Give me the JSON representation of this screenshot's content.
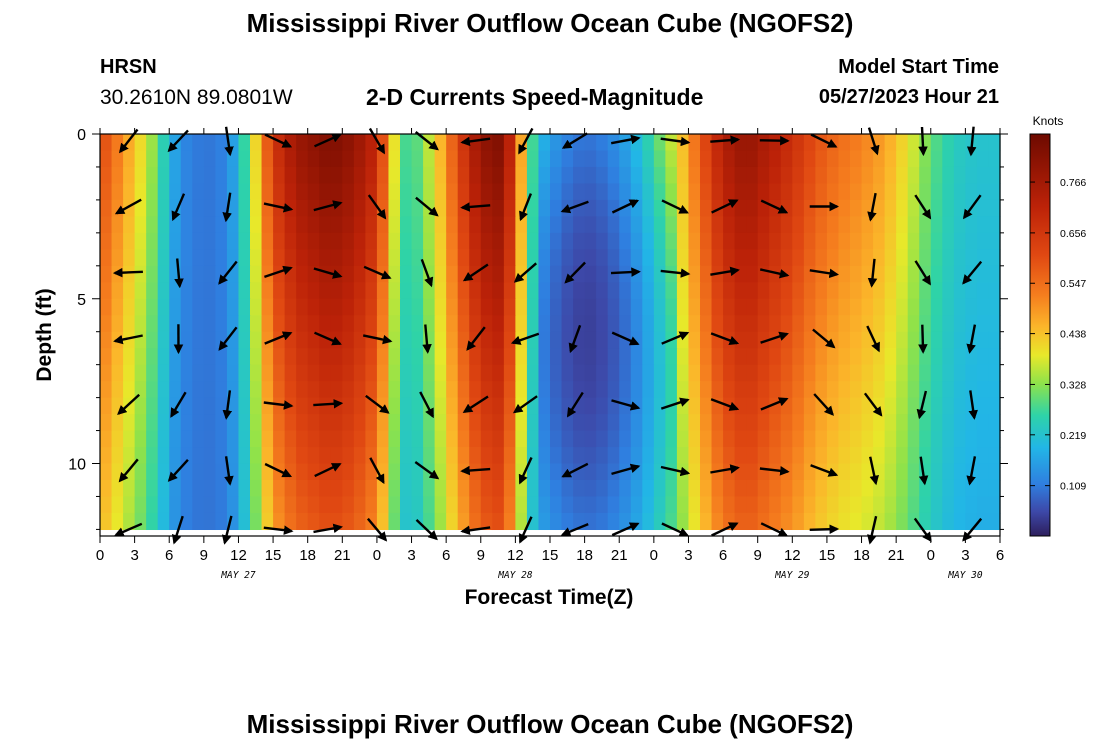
{
  "header": {
    "title": "Mississippi River Outflow Ocean Cube (NGOFS2)",
    "station": "HRSN",
    "coords": "30.2610N  89.0801W",
    "plot_title": "2-D Currents Speed-Magnitude",
    "model_label": "Model Start Time",
    "model_time": "05/27/2023 Hour 21"
  },
  "footer": {
    "title": "Mississippi River Outflow Ocean Cube (NGOFS2)"
  },
  "chart_data": {
    "type": "heatmap",
    "title": "2-D Currents Speed-Magnitude",
    "xlabel": "Forecast Time(Z)",
    "ylabel": "Depth (ft)",
    "units": "Knots",
    "xlim": [
      0,
      78
    ],
    "ylim": [
      12.2,
      0
    ],
    "x_tick_labels": [
      "0",
      "3",
      "6",
      "9",
      "12",
      "15",
      "18",
      "21",
      "0",
      "3",
      "6",
      "9",
      "12",
      "15",
      "18",
      "21",
      "0",
      "3",
      "6",
      "9",
      "12",
      "15",
      "18",
      "21",
      "0",
      "3",
      "6"
    ],
    "y_tick_labels": [
      "0",
      "5",
      "10"
    ],
    "date_labels": [
      {
        "text": "MAY 27",
        "hour": 12
      },
      {
        "text": "MAY 28",
        "hour": 36
      },
      {
        "text": "MAY 29",
        "hour": 60
      },
      {
        "text": "MAY 30",
        "hour": 75
      }
    ],
    "colorbar": {
      "min": 0.0,
      "max": 0.87,
      "ticks": [
        "0.766",
        "0.656",
        "0.547",
        "0.438",
        "0.328",
        "0.219",
        "0.109"
      ],
      "tick_values": [
        0.766,
        0.656,
        0.547,
        0.438,
        0.328,
        0.219,
        0.109
      ]
    },
    "depths_ft": [
      0.25,
      0.75,
      1.25,
      1.75,
      2.25,
      2.75,
      3.25,
      3.75,
      4.25,
      4.75,
      5.25,
      5.75,
      6.25,
      6.75,
      7.25,
      7.75,
      8.25,
      8.75,
      9.25,
      9.75,
      10.25,
      10.75,
      11.25,
      11.75
    ],
    "surface_speed_profile": [
      {
        "hour": 0,
        "speed": 0.62
      },
      {
        "hour": 2,
        "speed": 0.5
      },
      {
        "hour": 4,
        "speed": 0.38
      },
      {
        "hour": 5,
        "speed": 0.3
      },
      {
        "hour": 6,
        "speed": 0.2
      },
      {
        "hour": 7,
        "speed": 0.13
      },
      {
        "hour": 9,
        "speed": 0.1
      },
      {
        "hour": 11,
        "speed": 0.12
      },
      {
        "hour": 12,
        "speed": 0.2
      },
      {
        "hour": 13,
        "speed": 0.33
      },
      {
        "hour": 14,
        "speed": 0.5
      },
      {
        "hour": 15,
        "speed": 0.66
      },
      {
        "hour": 17,
        "speed": 0.78
      },
      {
        "hour": 20,
        "speed": 0.84
      },
      {
        "hour": 22,
        "speed": 0.8
      },
      {
        "hour": 24,
        "speed": 0.7
      },
      {
        "hour": 25,
        "speed": 0.5
      },
      {
        "hour": 26,
        "speed": 0.3
      },
      {
        "hour": 27,
        "speed": 0.26
      },
      {
        "hour": 29,
        "speed": 0.4
      },
      {
        "hour": 31,
        "speed": 0.62
      },
      {
        "hour": 33,
        "speed": 0.8
      },
      {
        "hour": 35,
        "speed": 0.84
      },
      {
        "hour": 36,
        "speed": 0.6
      },
      {
        "hour": 37,
        "speed": 0.35
      },
      {
        "hour": 38,
        "speed": 0.2
      },
      {
        "hour": 40,
        "speed": 0.13
      },
      {
        "hour": 42,
        "speed": 0.1
      },
      {
        "hour": 44,
        "speed": 0.12
      },
      {
        "hour": 46,
        "speed": 0.18
      },
      {
        "hour": 48,
        "speed": 0.28
      },
      {
        "hour": 50,
        "speed": 0.4
      },
      {
        "hour": 52,
        "speed": 0.58
      },
      {
        "hour": 54,
        "speed": 0.74
      },
      {
        "hour": 56,
        "speed": 0.8
      },
      {
        "hour": 58,
        "speed": 0.74
      },
      {
        "hour": 60,
        "speed": 0.68
      },
      {
        "hour": 62,
        "speed": 0.6
      },
      {
        "hour": 64,
        "speed": 0.55
      },
      {
        "hour": 66,
        "speed": 0.52
      },
      {
        "hour": 68,
        "speed": 0.48
      },
      {
        "hour": 70,
        "speed": 0.4
      },
      {
        "hour": 72,
        "speed": 0.3
      },
      {
        "hour": 74,
        "speed": 0.24
      },
      {
        "hour": 76,
        "speed": 0.22
      },
      {
        "hour": 78,
        "speed": 0.22
      }
    ],
    "arrow_depths_ft": [
      0.2,
      2.2,
      4.2,
      6.2,
      8.2,
      10.2,
      12.0
    ],
    "arrows": [
      {
        "hour": 3,
        "u": -0.9,
        "v": -0.45
      },
      {
        "hour": 8,
        "u": -0.3,
        "v": -0.95
      },
      {
        "hour": 15,
        "u": 1,
        "v": 0
      },
      {
        "hour": 20,
        "u": 1,
        "v": 0
      },
      {
        "hour": 24,
        "u": 0.8,
        "v": -0.6
      },
      {
        "hour": 27,
        "u": 0.5,
        "v": -0.85
      },
      {
        "hour": 30,
        "u": -0.9,
        "v": -0.45
      },
      {
        "hour": 36,
        "u": -0.7,
        "v": -0.7
      },
      {
        "hour": 54,
        "u": 1,
        "v": 0
      },
      {
        "hour": 60,
        "u": 1,
        "v": 0
      },
      {
        "hour": 64,
        "u": 0.9,
        "v": -0.4
      },
      {
        "hour": 67,
        "u": 0.2,
        "v": -0.95
      },
      {
        "hour": 70,
        "u": 0.2,
        "v": -0.95
      },
      {
        "hour": 74,
        "u": -0.3,
        "v": -0.95
      }
    ],
    "arrow_grid_note": "Velocity arrows plotted every ~4.3 h at 7 depths; direction (u, v) is unit-less."
  }
}
